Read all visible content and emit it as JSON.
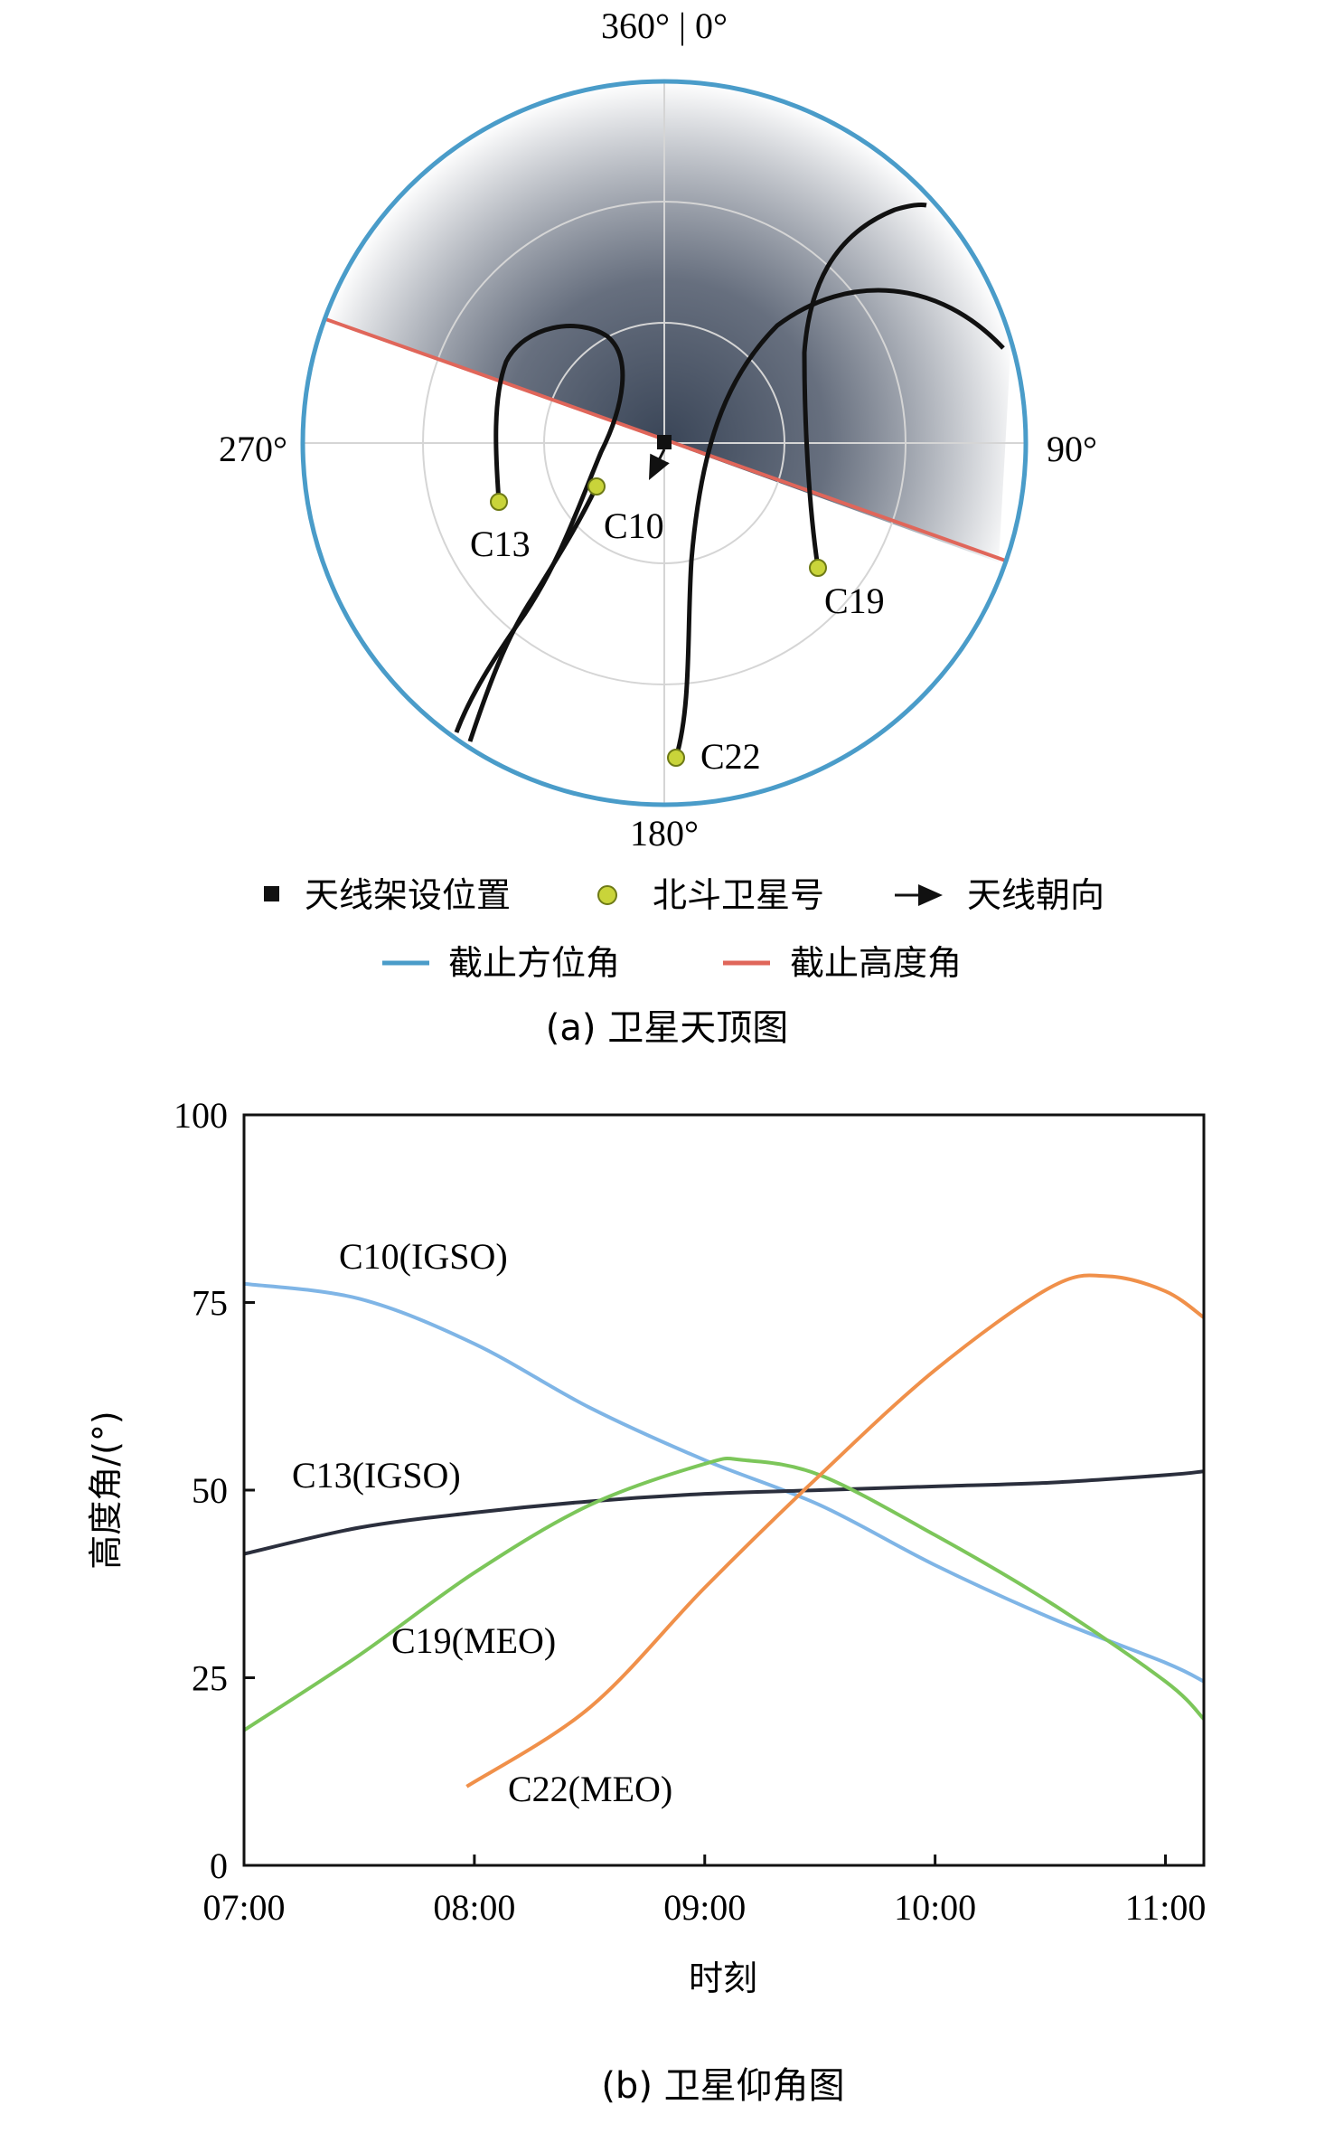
{
  "panel_a": {
    "caption": "(a) 卫星天顶图",
    "azimuth_labels": {
      "north": "360° | 0°",
      "east": "90°",
      "south": "180°",
      "west": "270°"
    },
    "satellites": [
      {
        "id": "C13",
        "label": "C13"
      },
      {
        "id": "C10",
        "label": "C10"
      },
      {
        "id": "C19",
        "label": "C19"
      },
      {
        "id": "C22",
        "label": "C22"
      }
    ],
    "legend": {
      "antenna_position": "天线架设位置",
      "beidou_satellite": "北斗卫星号",
      "antenna_direction": "天线朝向",
      "cutoff_azimuth": "截止方位角",
      "cutoff_elevation": "截止高度角"
    },
    "colors": {
      "cutoff_azimuth": "#4a9cc9",
      "cutoff_elevation": "#e0665a",
      "satellite_marker": "#c9d43a",
      "shade": "#2f3b4e"
    }
  },
  "chart_data": {
    "type": "line",
    "title": "",
    "caption": "(b) 卫星仰角图",
    "xlabel": "时刻",
    "ylabel": "高度角/(°)",
    "xlim": [
      "07:00",
      "11:10"
    ],
    "ylim": [
      0,
      100
    ],
    "x_ticks": [
      "07:00",
      "08:00",
      "09:00",
      "10:00",
      "11:00"
    ],
    "y_ticks": [
      0,
      25,
      50,
      75,
      100
    ],
    "grid": false,
    "series": [
      {
        "name": "C10(IGSO)",
        "color": "#7fb5e6",
        "x": [
          "07:00",
          "07:30",
          "08:00",
          "08:30",
          "09:00",
          "09:30",
          "10:00",
          "10:30",
          "11:00",
          "11:10"
        ],
        "values": [
          77.5,
          75.5,
          69.5,
          61,
          54,
          48,
          40,
          33,
          27,
          24.5
        ]
      },
      {
        "name": "C13(IGSO)",
        "color": "#2b2f3d",
        "x": [
          "07:00",
          "07:30",
          "08:00",
          "08:30",
          "09:00",
          "09:30",
          "10:00",
          "10:30",
          "11:00",
          "11:10"
        ],
        "values": [
          41.5,
          45,
          47,
          48.5,
          49.5,
          50,
          50.5,
          51,
          52,
          52.5
        ]
      },
      {
        "name": "C19(MEO)",
        "color": "#7cc65a",
        "x": [
          "07:00",
          "07:30",
          "08:00",
          "08:30",
          "09:00",
          "09:10",
          "09:30",
          "10:00",
          "10:30",
          "11:00",
          "11:10"
        ],
        "values": [
          18,
          28,
          39,
          48,
          53.5,
          54,
          52,
          44,
          35,
          24.5,
          19.5
        ]
      },
      {
        "name": "C22(MEO)",
        "color": "#f0904a",
        "x": [
          "07:58",
          "08:30",
          "09:00",
          "09:30",
          "10:00",
          "10:30",
          "10:45",
          "11:00",
          "11:10"
        ],
        "values": [
          10.5,
          21,
          37,
          52,
          66,
          77,
          78.5,
          76.5,
          73
        ]
      }
    ]
  }
}
